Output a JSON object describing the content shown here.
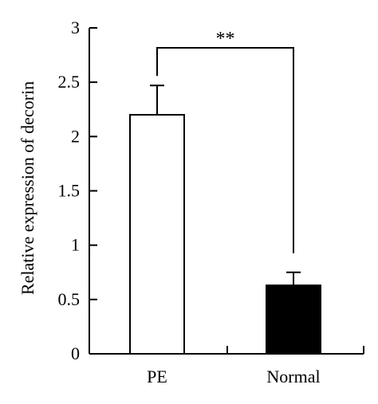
{
  "chart_data": {
    "type": "bar",
    "title": "",
    "xlabel": "",
    "ylabel": "Relative expression of decorin",
    "categories": [
      "PE",
      "Normal"
    ],
    "values": [
      2.2,
      0.63
    ],
    "errors": [
      0.27,
      0.12
    ],
    "bar_colors": [
      "#ffffff",
      "#000000"
    ],
    "ylim": [
      0,
      3
    ],
    "yticks": [
      0,
      0.5,
      1,
      1.5,
      2,
      2.5,
      3
    ],
    "ytick_labels": [
      "0",
      "0.5",
      "1",
      "1.5",
      "2",
      "2.5",
      "3"
    ],
    "grid": false,
    "significance": {
      "label": "**",
      "between": [
        "PE",
        "Normal"
      ]
    }
  }
}
